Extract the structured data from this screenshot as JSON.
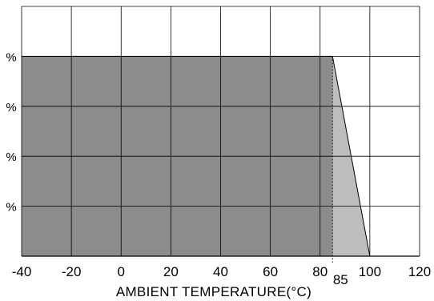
{
  "chart_data": {
    "type": "area",
    "title": "",
    "xlabel": "AMBIENT TEMPERATURE(°C)",
    "ylabel": "",
    "xlim": [
      -40,
      120
    ],
    "ylim": [
      0,
      100
    ],
    "x_ticks": [
      -40,
      -20,
      0,
      20,
      40,
      60,
      80,
      100,
      120
    ],
    "x_tick_labels": [
      "-40",
      "-20",
      "0",
      "20",
      "40",
      "60",
      "80",
      "100",
      "120"
    ],
    "y_grid": [
      20,
      40,
      60,
      80,
      100
    ],
    "y_tick_fragments": [
      "%",
      "%",
      "%",
      "%"
    ],
    "grid": true,
    "series": [
      {
        "points": [
          [
            -40,
            80
          ],
          [
            85,
            80
          ],
          [
            100,
            0
          ]
        ],
        "color_flat": "#8c8c8c",
        "color_derate": "#bdbdbd"
      }
    ],
    "markers": [
      {
        "x": 85,
        "label": "85"
      }
    ]
  }
}
